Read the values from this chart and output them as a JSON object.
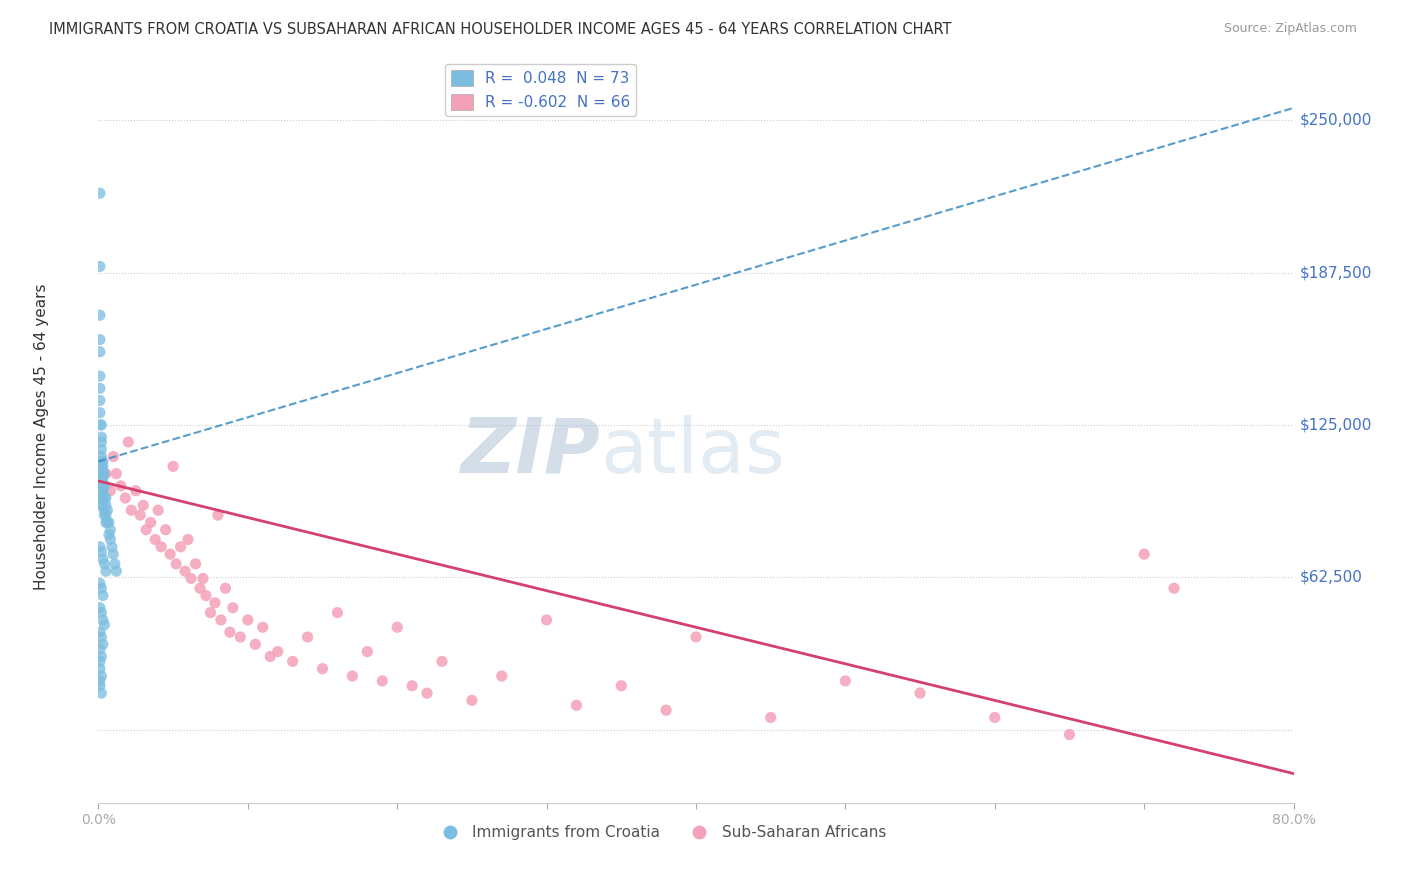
{
  "title": "IMMIGRANTS FROM CROATIA VS SUBSAHARAN AFRICAN HOUSEHOLDER INCOME AGES 45 - 64 YEARS CORRELATION CHART",
  "source": "Source: ZipAtlas.com",
  "ylabel": "Householder Income Ages 45 - 64 years",
  "xlim": [
    0.0,
    0.8
  ],
  "ylim": [
    -30000,
    270000
  ],
  "yticks": [
    0,
    62500,
    125000,
    187500,
    250000
  ],
  "ytick_labels": [
    "",
    "$62,500",
    "$125,000",
    "$187,500",
    "$250,000"
  ],
  "xticks": [
    0.0,
    0.1,
    0.2,
    0.3,
    0.4,
    0.5,
    0.6,
    0.7,
    0.8
  ],
  "xtick_labels": [
    "0.0%",
    "",
    "",
    "",
    "",
    "",
    "",
    "",
    "80.0%"
  ],
  "blue_color": "#7bbde0",
  "blue_line_color": "#3a8cc4",
  "pink_color": "#f4a0b8",
  "pink_line_color": "#d44070",
  "legend_label_1": "R =  0.048  N = 73",
  "legend_label_2": "R = -0.602  N = 66",
  "watermark": "ZIPatlas",
  "watermark_color": "#ccd8e8",
  "croatia_line_x0": 0.0,
  "croatia_line_y0": 110000,
  "croatia_line_x1": 0.8,
  "croatia_line_y1": 255000,
  "subsaharan_line_x0": 0.0,
  "subsaharan_line_y0": 102000,
  "subsaharan_line_x1": 0.8,
  "subsaharan_line_y1": -18000,
  "croatia_x": [
    0.001,
    0.001,
    0.001,
    0.001,
    0.001,
    0.001,
    0.001,
    0.001,
    0.001,
    0.001,
    0.002,
    0.002,
    0.002,
    0.002,
    0.002,
    0.002,
    0.002,
    0.002,
    0.002,
    0.002,
    0.002,
    0.002,
    0.002,
    0.003,
    0.003,
    0.003,
    0.003,
    0.003,
    0.003,
    0.003,
    0.003,
    0.004,
    0.004,
    0.004,
    0.004,
    0.004,
    0.005,
    0.005,
    0.005,
    0.005,
    0.006,
    0.006,
    0.007,
    0.007,
    0.008,
    0.008,
    0.009,
    0.01,
    0.011,
    0.012,
    0.001,
    0.002,
    0.003,
    0.004,
    0.005,
    0.001,
    0.002,
    0.003,
    0.001,
    0.002,
    0.003,
    0.004,
    0.001,
    0.002,
    0.003,
    0.001,
    0.002,
    0.001,
    0.001,
    0.002,
    0.001,
    0.001,
    0.002
  ],
  "croatia_y": [
    220000,
    190000,
    170000,
    160000,
    155000,
    145000,
    140000,
    135000,
    130000,
    125000,
    125000,
    120000,
    118000,
    115000,
    112000,
    110000,
    108000,
    105000,
    103000,
    100000,
    98000,
    95000,
    92000,
    110000,
    108000,
    105000,
    102000,
    100000,
    98000,
    95000,
    92000,
    105000,
    100000,
    95000,
    90000,
    88000,
    95000,
    92000,
    88000,
    85000,
    90000,
    85000,
    85000,
    80000,
    82000,
    78000,
    75000,
    72000,
    68000,
    65000,
    75000,
    73000,
    70000,
    68000,
    65000,
    60000,
    58000,
    55000,
    50000,
    48000,
    45000,
    43000,
    40000,
    38000,
    35000,
    33000,
    30000,
    28000,
    25000,
    22000,
    20000,
    18000,
    15000
  ],
  "subsaharan_x": [
    0.005,
    0.008,
    0.01,
    0.012,
    0.015,
    0.018,
    0.02,
    0.022,
    0.025,
    0.028,
    0.03,
    0.032,
    0.035,
    0.038,
    0.04,
    0.042,
    0.045,
    0.048,
    0.05,
    0.052,
    0.055,
    0.058,
    0.06,
    0.062,
    0.065,
    0.068,
    0.07,
    0.072,
    0.075,
    0.078,
    0.08,
    0.082,
    0.085,
    0.088,
    0.09,
    0.095,
    0.1,
    0.105,
    0.11,
    0.115,
    0.12,
    0.13,
    0.14,
    0.15,
    0.16,
    0.17,
    0.18,
    0.19,
    0.2,
    0.21,
    0.22,
    0.23,
    0.25,
    0.27,
    0.3,
    0.32,
    0.35,
    0.38,
    0.4,
    0.45,
    0.5,
    0.55,
    0.6,
    0.65,
    0.7,
    0.72
  ],
  "subsaharan_y": [
    105000,
    98000,
    112000,
    105000,
    100000,
    95000,
    118000,
    90000,
    98000,
    88000,
    92000,
    82000,
    85000,
    78000,
    90000,
    75000,
    82000,
    72000,
    108000,
    68000,
    75000,
    65000,
    78000,
    62000,
    68000,
    58000,
    62000,
    55000,
    48000,
    52000,
    88000,
    45000,
    58000,
    40000,
    50000,
    38000,
    45000,
    35000,
    42000,
    30000,
    32000,
    28000,
    38000,
    25000,
    48000,
    22000,
    32000,
    20000,
    42000,
    18000,
    15000,
    28000,
    12000,
    22000,
    45000,
    10000,
    18000,
    8000,
    38000,
    5000,
    20000,
    15000,
    5000,
    -2000,
    72000,
    58000
  ]
}
